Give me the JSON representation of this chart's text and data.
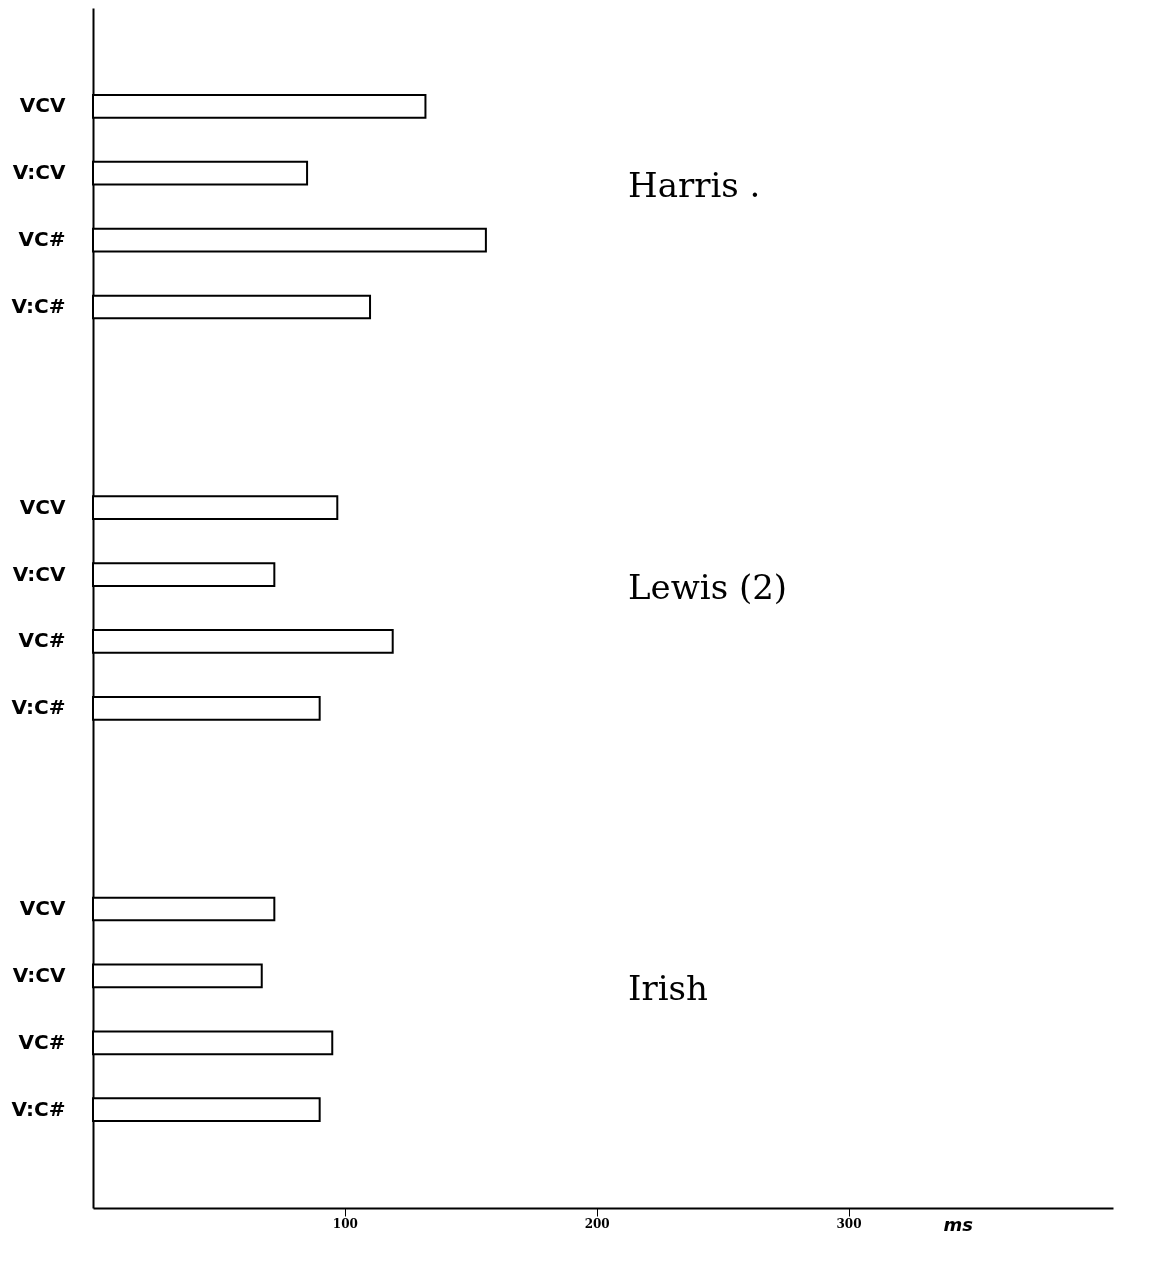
{
  "chart_data": {
    "type": "bar",
    "orientation": "horizontal",
    "categories": [
      null,
      "VCV",
      "V:CV",
      "VC#",
      "V:C#",
      null,
      null,
      "VCV",
      "V:CV",
      "VC#",
      "V:C#",
      null,
      null,
      "VCV",
      "V:CV",
      "VC#",
      "V:C#",
      null
    ],
    "values": [
      null,
      132,
      85,
      156,
      110,
      null,
      null,
      97,
      72,
      119,
      90,
      null,
      null,
      72,
      67,
      95,
      90,
      null
    ],
    "color": "#ffffff",
    "xlabel": "ms",
    "xlim": [
      0,
      405
    ],
    "xticks": [
      100,
      200,
      300
    ],
    "annotations": [
      "Harris .",
      "Lewis (2)",
      "Irish"
    ],
    "grid": false
  }
}
